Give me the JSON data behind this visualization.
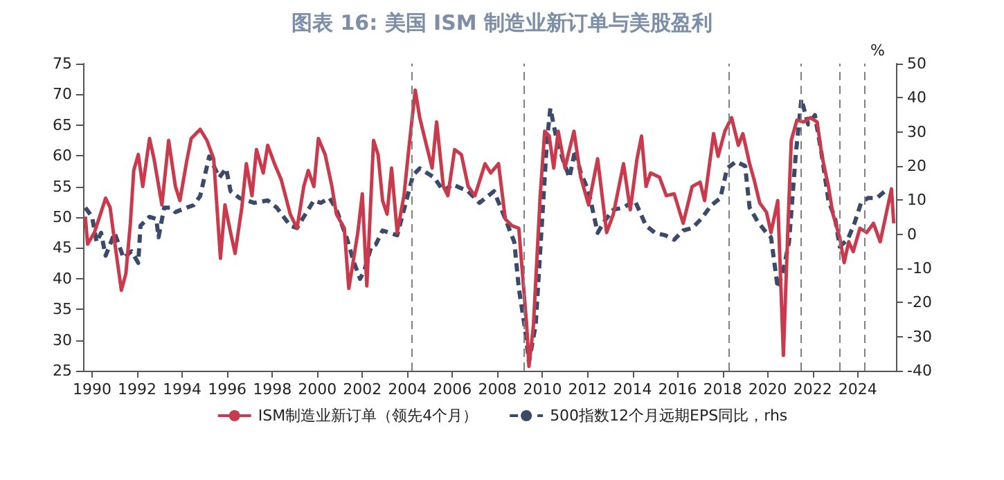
{
  "chart_data": {
    "type": "line",
    "title": "图表 16: 美国 ISM 制造业新订单与美股盈利",
    "y2label": "%",
    "xlim": [
      1989.6,
      2025.7
    ],
    "xticks": [
      1990,
      1992,
      1994,
      1996,
      1998,
      2000,
      2002,
      2004,
      2006,
      2008,
      2010,
      2012,
      2014,
      2016,
      2018,
      2020,
      2022,
      2024
    ],
    "ylim": [
      25,
      75
    ],
    "yticks": [
      25,
      30,
      35,
      40,
      45,
      50,
      55,
      60,
      65,
      70,
      75
    ],
    "y2lim": [
      -40,
      50
    ],
    "y2ticks": [
      -40,
      -30,
      -20,
      -10,
      0,
      10,
      20,
      30,
      40,
      50
    ],
    "legend": "bottom",
    "marker": "none",
    "ref_lines": [
      {
        "axis": "x",
        "value": 2004.2,
        "color": "#808080",
        "line_style": "dashed"
      },
      {
        "axis": "x",
        "value": 2009.2,
        "color": "#808080",
        "line_style": "dashed"
      },
      {
        "axis": "x",
        "value": 2018.3,
        "color": "#808080",
        "line_style": "dashed"
      },
      {
        "axis": "x",
        "value": 2021.5,
        "color": "#808080",
        "line_style": "dashed"
      },
      {
        "axis": "x",
        "value": 2023.2,
        "color": "#808080",
        "line_style": "dashed"
      },
      {
        "axis": "x",
        "value": 2024.3,
        "color": "#808080",
        "line_style": "dashed"
      }
    ],
    "series": [
      {
        "name": "ISM制造业新订单（领先4个月）",
        "color": "#c93a4c",
        "line_style": "solid",
        "x": [
          1989.7,
          1989.8,
          1990.1,
          1990.3,
          1990.6,
          1990.8,
          1991.0,
          1991.3,
          1991.5,
          1991.7,
          1991.85,
          1992.05,
          1992.25,
          1992.55,
          1992.75,
          1993.1,
          1993.4,
          1993.7,
          1993.9,
          1994.2,
          1994.4,
          1994.8,
          1995.1,
          1995.4,
          1995.7,
          1995.9,
          1996.15,
          1996.35,
          1996.65,
          1996.85,
          1997.1,
          1997.3,
          1997.6,
          1997.8,
          1998.1,
          1998.4,
          1998.8,
          1999.1,
          1999.4,
          1999.6,
          1999.85,
          2000.05,
          2000.35,
          2000.65,
          2000.85,
          2001.2,
          2001.4,
          2001.6,
          2001.8,
          2002.0,
          2002.2,
          2002.5,
          2002.7,
          2002.9,
          2003.1,
          2003.3,
          2003.55,
          2003.85,
          2004.05,
          2004.35,
          2004.55,
          2004.85,
          2005.1,
          2005.3,
          2005.6,
          2005.8,
          2006.1,
          2006.4,
          2006.7,
          2007.0,
          2007.45,
          2007.7,
          2008.05,
          2008.35,
          2008.65,
          2008.95,
          2009.3,
          2009.4,
          2009.6,
          2009.9,
          2010.1,
          2010.3,
          2010.5,
          2010.7,
          2011.0,
          2011.4,
          2011.7,
          2012.05,
          2012.45,
          2012.85,
          2013.15,
          2013.6,
          2013.9,
          2014.2,
          2014.4,
          2014.6,
          2014.8,
          2015.2,
          2015.5,
          2015.85,
          2016.25,
          2016.65,
          2017.0,
          2017.2,
          2017.6,
          2017.8,
          2018.1,
          2018.4,
          2018.7,
          2018.9,
          2019.2,
          2019.4,
          2019.65,
          2019.95,
          2020.15,
          2020.45,
          2020.7,
          2020.9,
          2021.05,
          2021.3,
          2021.6,
          2021.9,
          2022.2,
          2022.4,
          2022.7,
          2022.9,
          2023.2,
          2023.4,
          2023.6,
          2023.8,
          2024.1,
          2024.4,
          2024.7,
          2025.0,
          2025.5,
          2025.6
        ],
        "values": [
          50.1,
          45.6,
          47.5,
          49.7,
          53.1,
          51.6,
          46,
          38.1,
          40.8,
          49,
          57.6,
          60.2,
          55,
          62.8,
          59.5,
          52,
          62.5,
          55,
          52.7,
          59.1,
          62.8,
          64.3,
          62.5,
          59.5,
          43.3,
          52,
          47.5,
          44.1,
          51.6,
          58.7,
          53.5,
          61,
          57.2,
          61.7,
          58.7,
          56.1,
          50.5,
          48.2,
          55,
          57.6,
          55,
          62.8,
          60.2,
          55,
          50.5,
          48.2,
          38.4,
          42.9,
          47.5,
          53.8,
          38.8,
          62.5,
          60.2,
          52.7,
          50.5,
          58,
          47.5,
          53.5,
          60.6,
          70.7,
          66.2,
          61.7,
          58,
          65.5,
          55,
          53.5,
          61,
          60.2,
          55,
          53.5,
          58.7,
          57.2,
          58.7,
          49.7,
          48.6,
          48.2,
          32.4,
          25.7,
          32.4,
          53.5,
          64,
          63.2,
          58,
          64,
          58,
          64,
          56.5,
          52,
          59.5,
          47.5,
          50.5,
          58.7,
          51.2,
          59.5,
          63.2,
          55,
          57.2,
          56.5,
          53.5,
          53.8,
          49,
          55,
          55.7,
          52.7,
          63.6,
          59.9,
          64,
          66.2,
          61.7,
          63.6,
          58.7,
          56.1,
          52.3,
          50.8,
          47.5,
          52.7,
          27.5,
          48.2,
          62.5,
          65.8,
          65.5,
          66.2,
          65.5,
          60.2,
          55,
          50.5,
          46.7,
          42.6,
          46,
          44.4,
          48.2,
          47.5,
          49,
          46,
          54.6,
          49
        ]
      },
      {
        "name": "500指数12个月远期EPS同比，rhs",
        "color": "#3b4a6b",
        "line_style": "dashed",
        "axis": "y2",
        "x": [
          1989.7,
          1990.0,
          1990.2,
          1990.4,
          1990.6,
          1991.0,
          1991.4,
          1991.75,
          1992.05,
          1992.15,
          1992.55,
          1992.85,
          1992.95,
          1993.2,
          1993.5,
          1993.7,
          1994.2,
          1994.5,
          1994.8,
          1995.2,
          1995.65,
          1995.95,
          1996.15,
          1996.55,
          1997.2,
          1997.8,
          1998.2,
          1998.8,
          1999.1,
          1999.4,
          1999.85,
          2000.15,
          2000.55,
          2000.85,
          2001.3,
          2001.6,
          2001.9,
          2002.1,
          2002.4,
          2002.6,
          2002.9,
          2003.55,
          2003.85,
          2004.25,
          2004.55,
          2005.2,
          2005.6,
          2006.0,
          2006.7,
          2007.2,
          2007.85,
          2008.35,
          2008.75,
          2008.95,
          2009.2,
          2009.4,
          2009.7,
          2010.0,
          2010.2,
          2010.35,
          2010.6,
          2010.9,
          2011.2,
          2011.45,
          2011.7,
          2012.05,
          2012.45,
          2012.75,
          2013.15,
          2013.6,
          2014.1,
          2014.6,
          2015.0,
          2015.45,
          2015.85,
          2016.25,
          2016.65,
          2017.05,
          2017.5,
          2017.9,
          2018.2,
          2018.6,
          2019.0,
          2019.2,
          2019.55,
          2019.95,
          2020.15,
          2020.45,
          2020.7,
          2020.95,
          2021.25,
          2021.5,
          2021.8,
          2022.1,
          2022.4,
          2022.7,
          2023.0,
          2023.2,
          2023.55,
          2023.85,
          2024.15,
          2024.45,
          2024.85,
          2025.2
        ],
        "values": [
          7.8,
          5.1,
          -2.3,
          0.4,
          -6.3,
          0.4,
          -7,
          -5,
          -8.4,
          2.5,
          5.1,
          4.5,
          -0.9,
          7.8,
          7.8,
          6.5,
          7.8,
          8.5,
          11.2,
          22.8,
          16.6,
          19.3,
          12.6,
          10.6,
          9.2,
          9.9,
          7.8,
          2.5,
          1.8,
          5.1,
          9.9,
          9.2,
          10.6,
          7.2,
          -0.9,
          -7.7,
          -13.1,
          -10.4,
          -3.6,
          -3,
          1.1,
          -0.3,
          7.2,
          17.3,
          19.3,
          16.6,
          12.6,
          14.6,
          12.6,
          9.2,
          12.6,
          4.5,
          -2.3,
          -15.8,
          -26.6,
          -37.4,
          -26.6,
          5.8,
          27.4,
          36.9,
          28.8,
          22,
          16.6,
          24.7,
          18,
          12.6,
          0.4,
          3.8,
          7.2,
          7.8,
          9.9,
          2.5,
          0.4,
          -0.3,
          -1.6,
          1.1,
          1.8,
          4.5,
          8.5,
          10.6,
          19.3,
          21.3,
          20,
          7.8,
          3.8,
          0.4,
          -0.9,
          -15.8,
          -10.4,
          -2.3,
          23.4,
          39.6,
          32.2,
          34.9,
          23.4,
          9.9,
          4.5,
          -3.6,
          -1.6,
          3.1,
          9.2,
          10.6,
          10.6,
          12.6
        ]
      }
    ]
  }
}
